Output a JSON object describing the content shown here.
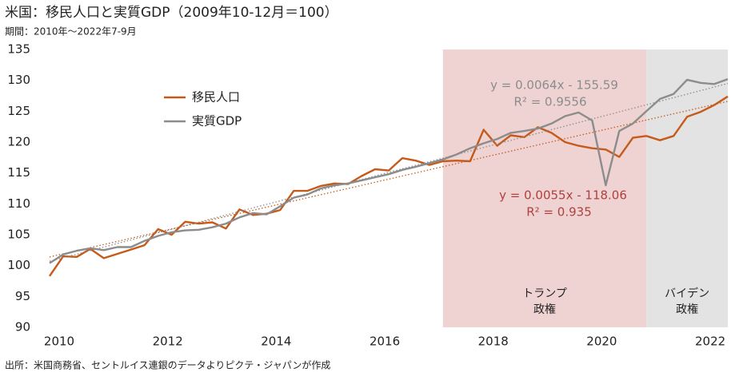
{
  "chart_data": {
    "type": "line",
    "title": "米国：移民人口と実質GDP（2009年10-12月＝100）",
    "subtitle": "期間：2010年～2022年7-9月",
    "source": "出所：米国商務省、セントルイス連銀のデータよりピクテ・ジャパンが作成",
    "x": [
      2010,
      2010.25,
      2010.5,
      2010.75,
      2011,
      2011.25,
      2011.5,
      2011.75,
      2012,
      2012.25,
      2012.5,
      2012.75,
      2013,
      2013.25,
      2013.5,
      2013.75,
      2014,
      2014.25,
      2014.5,
      2014.75,
      2015,
      2015.25,
      2015.5,
      2015.75,
      2016,
      2016.25,
      2016.5,
      2016.75,
      2017,
      2017.25,
      2017.5,
      2017.75,
      2018,
      2018.25,
      2018.5,
      2018.75,
      2019,
      2019.25,
      2019.5,
      2019.75,
      2020,
      2020.25,
      2020.5,
      2020.75,
      2021,
      2021.25,
      2021.5,
      2021.75,
      2022,
      2022.25,
      2022.5
    ],
    "series": [
      {
        "name": "移民人口",
        "color": "#c55a1a",
        "values": [
          98.3,
          101.5,
          101.4,
          102.7,
          101.2,
          101.9,
          102.6,
          103.3,
          105.9,
          105.0,
          107.1,
          106.8,
          107.0,
          106.0,
          109.1,
          108.2,
          108.4,
          109.0,
          112.1,
          112.1,
          112.9,
          113.3,
          113.2,
          114.5,
          115.6,
          115.4,
          117.4,
          117.0,
          116.3,
          116.9,
          117.0,
          116.9,
          122.0,
          119.4,
          121.1,
          120.8,
          122.4,
          121.5,
          120.0,
          119.4,
          119.0,
          118.8,
          117.6,
          120.7,
          121.0,
          120.3,
          121.0,
          124.1,
          124.9,
          126.0,
          127.4
        ],
        "trend": [
          101.4,
          126.6
        ]
      },
      {
        "name": "実質GDP",
        "color": "#8c8c8c",
        "values": [
          100.4,
          101.8,
          102.4,
          102.8,
          102.5,
          103.0,
          103.0,
          104.0,
          104.8,
          105.4,
          105.7,
          105.8,
          106.2,
          106.8,
          107.8,
          108.5,
          108.3,
          109.6,
          111.0,
          111.5,
          112.5,
          113.0,
          113.3,
          113.8,
          114.3,
          114.8,
          115.5,
          116.0,
          116.6,
          117.2,
          118.0,
          119.0,
          119.8,
          120.5,
          121.5,
          121.8,
          122.2,
          123.0,
          124.2,
          124.8,
          123.5,
          113.0,
          121.8,
          123.0,
          125.0,
          127.0,
          127.8,
          130.1,
          129.6,
          129.4,
          130.2
        ],
        "trend": [
          100.7,
          129.5
        ]
      }
    ],
    "annotations": [
      {
        "lines": [
          "y = 0.0064x - 155.59",
          "R² = 0.9556"
        ],
        "color": "#8c8c8c"
      },
      {
        "lines": [
          "y = 0.0055x - 118.06",
          "R² = 0.935"
        ],
        "color": "#b0413e"
      }
    ],
    "shaded_regions": [
      {
        "lines": [
          "トランプ",
          "政権"
        ],
        "xlim": [
          2017.25,
          2021.0
        ],
        "color": "#efd3d3"
      },
      {
        "lines": [
          "バイデン",
          "政権"
        ],
        "xlim": [
          2021.0,
          2022.5
        ],
        "color": "#e3e3e3"
      }
    ],
    "xlim": [
      2010,
      2022.5
    ],
    "xticks": [
      2010,
      2012,
      2014,
      2016,
      2018,
      2020,
      2022
    ],
    "ylim": [
      90,
      135
    ],
    "yticks": [
      90,
      95,
      100,
      105,
      110,
      115,
      120,
      125,
      130,
      135
    ],
    "grid": false,
    "legend": "upper left"
  }
}
